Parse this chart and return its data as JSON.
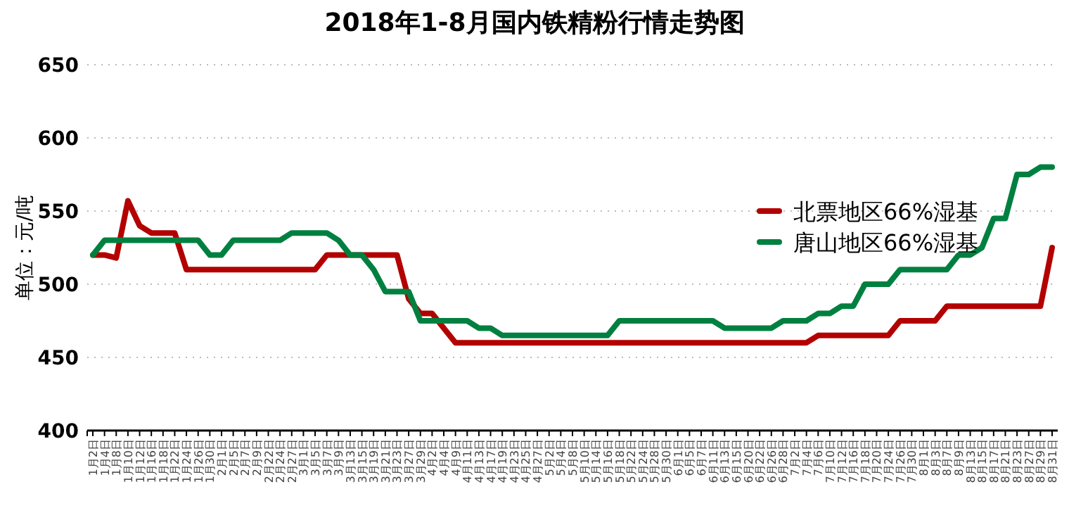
{
  "chart_data": {
    "type": "line",
    "title": "2018年1-8月国内铁精粉行情走势图",
    "ylabel": "单位：元/吨",
    "categories": [
      "1月2日",
      "1月4日",
      "1月8日",
      "1月10日",
      "1月12日",
      "1月16日",
      "1月18日",
      "1月22日",
      "1月24日",
      "1月26日",
      "1月30日",
      "2月1日",
      "2月5日",
      "2月7日",
      "2月9日",
      "2月22日",
      "2月24日",
      "2月27日",
      "3月1日",
      "3月5日",
      "3月7日",
      "3月9日",
      "3月13日",
      "3月15日",
      "3月19日",
      "3月21日",
      "3月23日",
      "3月27日",
      "3月29日",
      "4月2日",
      "4月4日",
      "4月9日",
      "4月11日",
      "4月13日",
      "4月17日",
      "4月19日",
      "4月23日",
      "4月25日",
      "4月27日",
      "5月2日",
      "5月4日",
      "5月8日",
      "5月10日",
      "5月14日",
      "5月16日",
      "5月18日",
      "5月22日",
      "5月24日",
      "5月28日",
      "5月30日",
      "6月1日",
      "6月5日",
      "6月7日",
      "6月11日",
      "6月13日",
      "6月15日",
      "6月20日",
      "6月22日",
      "6月26日",
      "6月28日",
      "7月2日",
      "7月4日",
      "7月6日",
      "7月10日",
      "7月12日",
      "7月16日",
      "7月18日",
      "7月20日",
      "7月24日",
      "7月26日",
      "7月30日",
      "8月1日",
      "8月3日",
      "8月7日",
      "8月9日",
      "8月13日",
      "8月15日",
      "8月17日",
      "8月21日",
      "8月23日",
      "8月27日",
      "8月29日",
      "8月31日"
    ],
    "series": [
      {
        "name": "北票地区66%湿基",
        "color": "#b30000",
        "values": [
          520,
          520,
          518,
          557,
          540,
          535,
          535,
          535,
          510,
          510,
          510,
          510,
          510,
          510,
          510,
          510,
          510,
          510,
          510,
          510,
          520,
          520,
          520,
          520,
          520,
          520,
          520,
          490,
          480,
          480,
          470,
          460,
          460,
          460,
          460,
          460,
          460,
          460,
          460,
          460,
          460,
          460,
          460,
          460,
          460,
          460,
          460,
          460,
          460,
          460,
          460,
          460,
          460,
          460,
          460,
          460,
          460,
          460,
          460,
          460,
          460,
          460,
          465,
          465,
          465,
          465,
          465,
          465,
          465,
          475,
          475,
          475,
          475,
          485,
          485,
          485,
          485,
          485,
          485,
          485,
          485,
          485,
          525
        ]
      },
      {
        "name": "唐山地区66%湿基",
        "color": "#008040",
        "values": [
          520,
          530,
          530,
          530,
          530,
          530,
          530,
          530,
          530,
          530,
          520,
          520,
          530,
          530,
          530,
          530,
          530,
          535,
          535,
          535,
          535,
          530,
          520,
          520,
          510,
          495,
          495,
          495,
          475,
          475,
          475,
          475,
          475,
          470,
          470,
          465,
          465,
          465,
          465,
          465,
          465,
          465,
          465,
          465,
          465,
          475,
          475,
          475,
          475,
          475,
          475,
          475,
          475,
          475,
          470,
          470,
          470,
          470,
          470,
          475,
          475,
          475,
          480,
          480,
          485,
          485,
          500,
          500,
          500,
          510,
          510,
          510,
          510,
          510,
          520,
          520,
          525,
          545,
          545,
          575,
          575,
          580,
          580
        ]
      }
    ],
    "ylim": [
      400,
      650
    ],
    "yticks": [
      400,
      450,
      500,
      550,
      600,
      650
    ],
    "grid": "y",
    "legend": "right",
    "marker": "none",
    "line_style": "solid"
  }
}
